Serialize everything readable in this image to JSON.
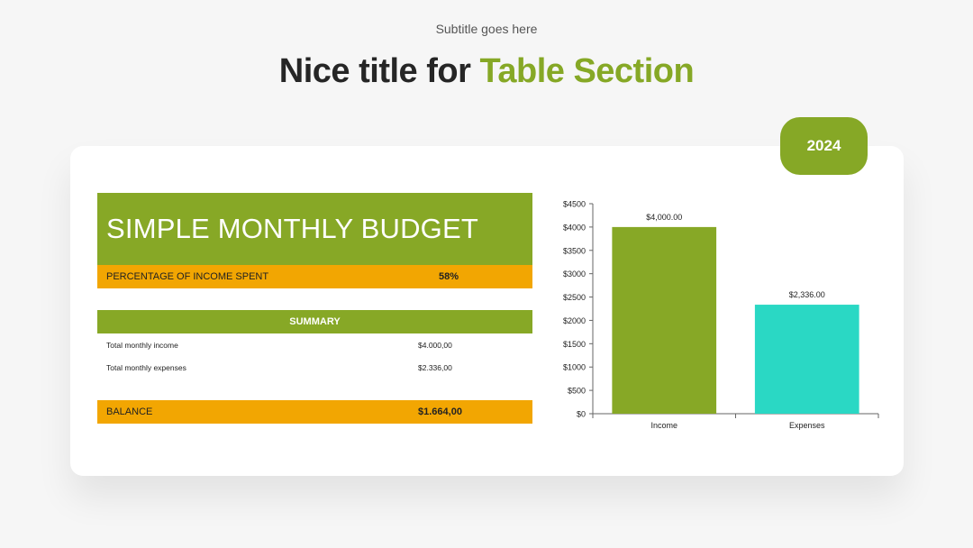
{
  "header": {
    "subtitle": "Subtitle goes here",
    "title_main": "Nice title for ",
    "title_accent": "Table Section"
  },
  "badge": {
    "year": "2024"
  },
  "budget": {
    "title": "SIMPLE MONTHLY BUDGET",
    "percentage_label": "PERCENTAGE OF INCOME SPENT",
    "percentage_value": "58%",
    "summary_label": "SUMMARY",
    "rows": [
      {
        "label": "Total monthly income",
        "value": "$4.000,00"
      },
      {
        "label": "Total monthly expenses",
        "value": "$2.336,00"
      }
    ],
    "balance_label": "BALANCE",
    "balance_value": "$1.664,00"
  },
  "colors": {
    "green": "#87a826",
    "orange": "#f2a602",
    "teal": "#2ad8c4"
  },
  "chart_data": {
    "type": "bar",
    "categories": [
      "Income",
      "Expenses"
    ],
    "values": [
      4000,
      2336
    ],
    "data_labels": [
      "$4,000.00",
      "$2,336.00"
    ],
    "bar_colors": [
      "#87a826",
      "#2ad8c4"
    ],
    "ylim": [
      0,
      4500
    ],
    "yticks": [
      0,
      500,
      1000,
      1500,
      2000,
      2500,
      3000,
      3500,
      4000,
      4500
    ],
    "ytick_labels": [
      "$0",
      "$500",
      "$1000",
      "$1500",
      "$2000",
      "$2500",
      "$3000",
      "$3500",
      "$4000",
      "$4500"
    ],
    "grid": false,
    "title": "",
    "xlabel": "",
    "ylabel": ""
  }
}
